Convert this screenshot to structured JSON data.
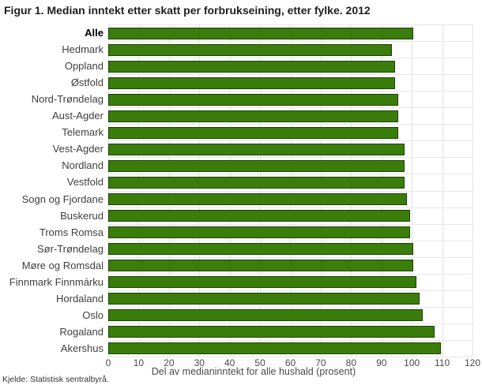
{
  "title": "Figur 1. Median inntekt etter skatt per forbrukseining, etter fylke. 2012",
  "source": "Kjelde: Statistisk sentralbyrå.",
  "colors": {
    "bar_fill": "#3a7d0b",
    "bar_border": "#1e4203",
    "gridline": "#e2e2e2"
  },
  "chart_data": {
    "type": "bar",
    "orientation": "horizontal",
    "title": "Figur 1. Median inntekt etter skatt per forbrukseining, etter fylke. 2012",
    "categories": [
      "Alle",
      "Hedmark",
      "Oppland",
      "Østfold",
      "Nord-Trøndelag",
      "Aust-Agder",
      "Telemark",
      "Vest-Agder",
      "Nordland",
      "Vestfold",
      "Sogn og Fjordane",
      "Buskerud",
      "Troms Romsa",
      "Sør-Trøndelag",
      "Møre og Romsdal",
      "Finnmark Finnmárku",
      "Hordaland",
      "Oslo",
      "Rogaland",
      "Akershus"
    ],
    "values": [
      100,
      93,
      94,
      94,
      95,
      95,
      95,
      97,
      97,
      97,
      98,
      99,
      99,
      100,
      100,
      101,
      102,
      103,
      107,
      109
    ],
    "xlabel": "Del av medianinntekt for alle hushald (prosent)",
    "ylabel": "",
    "xlim": [
      0,
      120
    ],
    "xticks": [
      0,
      10,
      20,
      30,
      40,
      50,
      60,
      70,
      80,
      90,
      100,
      110,
      120
    ],
    "grid": true,
    "legend": "none",
    "emphasized_category": "Alle"
  }
}
